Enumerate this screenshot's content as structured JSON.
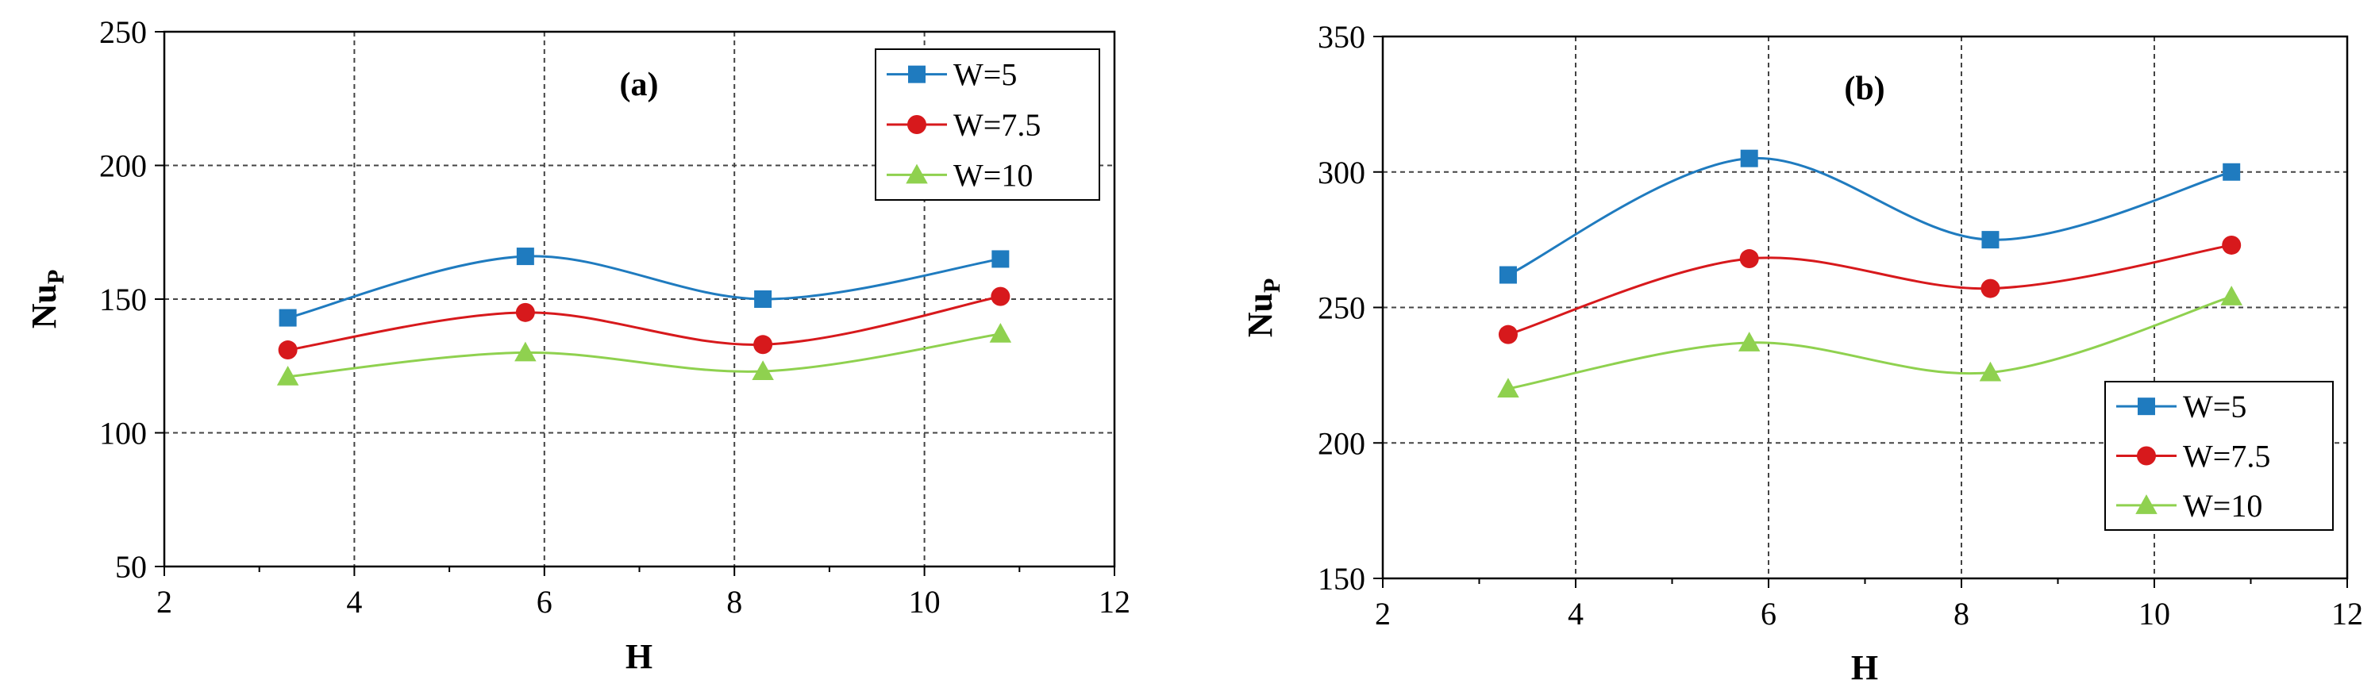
{
  "chart_data": [
    {
      "type": "line",
      "title": "(a)",
      "xlabel": "H",
      "ylabel": "Nu",
      "ylabel_sub": "P",
      "xlim": [
        2,
        12
      ],
      "ylim": [
        50,
        250
      ],
      "xticks": [
        2,
        4,
        6,
        8,
        10,
        12
      ],
      "yticks": [
        50,
        100,
        150,
        200,
        250
      ],
      "grid": true,
      "legend_position": "top-right",
      "x": [
        3.3,
        5.8,
        8.3,
        10.8
      ],
      "series": [
        {
          "name": "W=5",
          "values": [
            143,
            166,
            150,
            165
          ],
          "color": "#1f7bbf",
          "marker": "square"
        },
        {
          "name": "W=7.5",
          "values": [
            131,
            145,
            133,
            151
          ],
          "color": "#d7191c",
          "marker": "circle"
        },
        {
          "name": "W=10",
          "values": [
            121,
            130,
            123,
            137
          ],
          "color": "#8fd14f",
          "marker": "triangle"
        }
      ]
    },
    {
      "type": "line",
      "title": "(b)",
      "xlabel": "H",
      "ylabel": "Nu",
      "ylabel_sub": "P",
      "xlim": [
        2,
        12
      ],
      "ylim": [
        150,
        350
      ],
      "xticks": [
        2,
        4,
        6,
        8,
        10,
        12
      ],
      "yticks": [
        150,
        200,
        250,
        300,
        350
      ],
      "grid": true,
      "legend_position": "bottom-right",
      "x": [
        3.3,
        5.8,
        8.3,
        10.8
      ],
      "series": [
        {
          "name": "W=5",
          "values": [
            262,
            305,
            275,
            300
          ],
          "color": "#1f7bbf",
          "marker": "square"
        },
        {
          "name": "W=7.5",
          "values": [
            240,
            268,
            257,
            273
          ],
          "color": "#d7191c",
          "marker": "circle"
        },
        {
          "name": "W=10",
          "values": [
            220,
            237,
            226,
            254
          ],
          "color": "#8fd14f",
          "marker": "triangle"
        }
      ]
    }
  ]
}
